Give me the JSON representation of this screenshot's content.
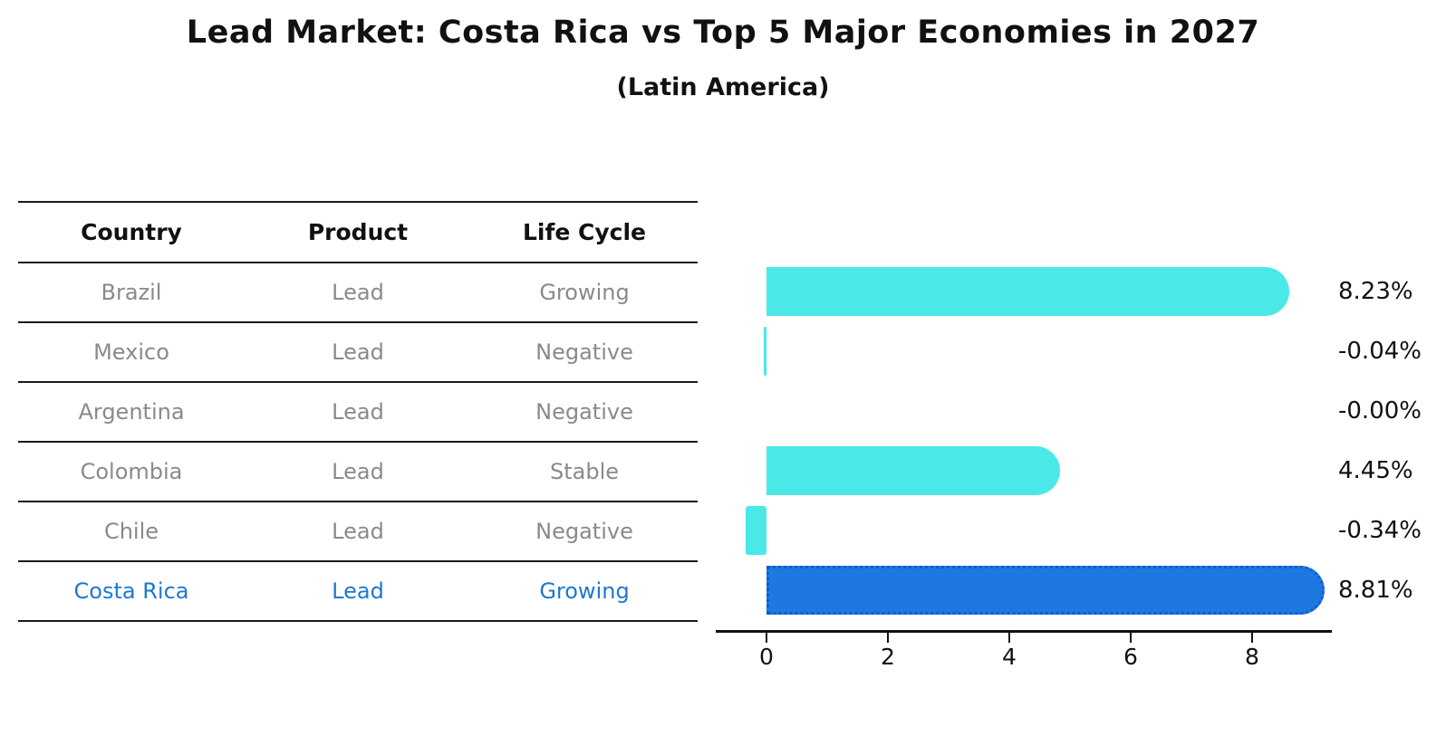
{
  "title": "Lead Market: Costa Rica vs Top 5 Major Economies in 2027",
  "subtitle": "(Latin America)",
  "table": {
    "headers": [
      "Country",
      "Product",
      "Life Cycle"
    ],
    "rows": [
      {
        "country": "Brazil",
        "product": "Lead",
        "life_cycle": "Growing",
        "highlight": false
      },
      {
        "country": "Mexico",
        "product": "Lead",
        "life_cycle": "Negative",
        "highlight": false
      },
      {
        "country": "Argentina",
        "product": "Lead",
        "life_cycle": "Negative",
        "highlight": false
      },
      {
        "country": "Colombia",
        "product": "Lead",
        "life_cycle": "Stable",
        "highlight": false
      },
      {
        "country": "Chile",
        "product": "Lead",
        "life_cycle": "Negative",
        "highlight": false
      },
      {
        "country": "Costa Rica",
        "product": "Lead",
        "life_cycle": "Growing",
        "highlight": true
      }
    ]
  },
  "chart_data": {
    "type": "bar",
    "orientation": "horizontal",
    "title": "Lead Market: Costa Rica vs Top 5 Major Economies in 2027",
    "subtitle": "(Latin America)",
    "categories": [
      "Brazil",
      "Mexico",
      "Argentina",
      "Colombia",
      "Chile",
      "Costa Rica"
    ],
    "values": [
      8.23,
      -0.04,
      -0.0,
      4.45,
      -0.34,
      8.81
    ],
    "value_labels": [
      "8.23%",
      "-0.04%",
      "-0.00%",
      "4.45%",
      "-0.34%",
      "8.81%"
    ],
    "x_ticks": [
      "0",
      "2",
      "4",
      "6",
      "8"
    ],
    "xlim": [
      -0.9,
      9.3
    ],
    "grid": false,
    "legend": "none",
    "highlight_category": "Costa Rica",
    "colors": {
      "bar_default": "#4BE8E8",
      "bar_highlight": "#1E78E2",
      "bar_highlight_edge": "#0E5FCE",
      "highlight_text": "#1E78D2",
      "table_text": "#8a8a8a",
      "text": "#111111"
    }
  }
}
